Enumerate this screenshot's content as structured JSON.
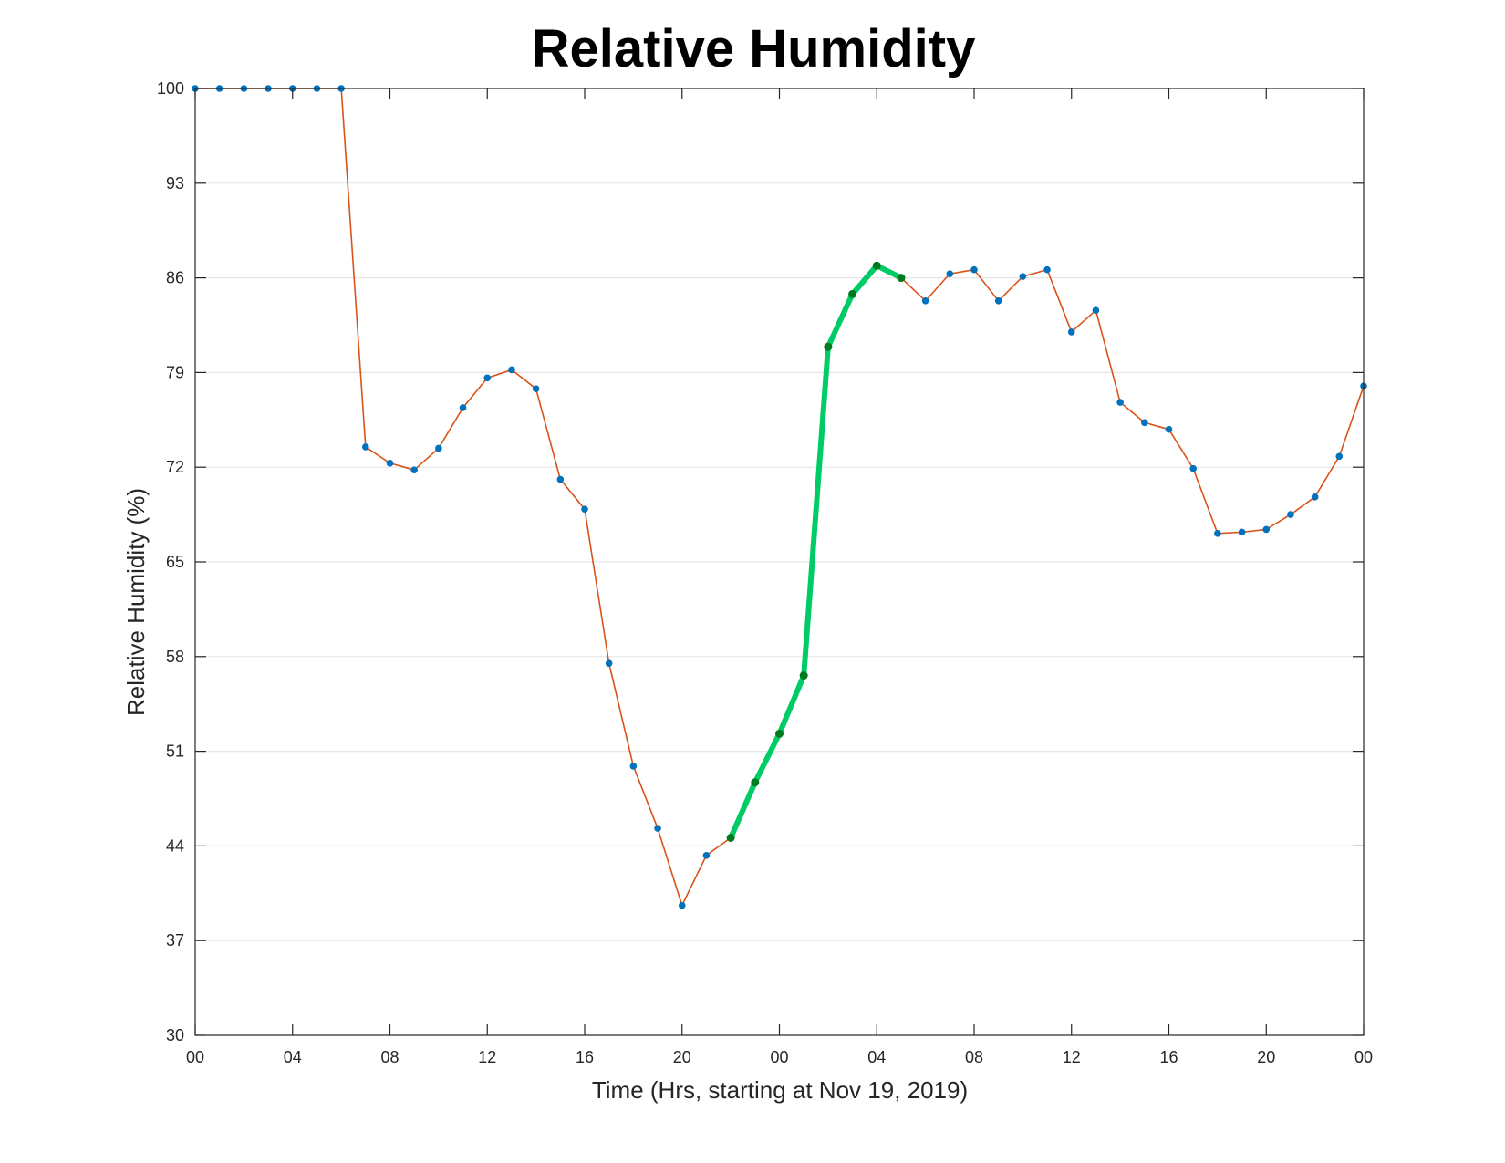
{
  "chart_data": {
    "type": "line",
    "title": "Relative Humidity",
    "xlabel": "Time (Hrs, starting at Nov 19, 2019)",
    "ylabel": "Relative Humidity (%)",
    "xlim": [
      0,
      48
    ],
    "ylim": [
      30,
      100
    ],
    "xticks": [
      0,
      4,
      8,
      12,
      16,
      20,
      24,
      28,
      32,
      36,
      40,
      44,
      48
    ],
    "xtick_labels": [
      "00",
      "04",
      "08",
      "12",
      "16",
      "20",
      "00",
      "04",
      "08",
      "12",
      "16",
      "20",
      "00"
    ],
    "yticks": [
      30,
      37,
      44,
      51,
      58,
      65,
      72,
      79,
      86,
      93,
      100
    ],
    "ytick_labels": [
      "30",
      "37",
      "44",
      "51",
      "58",
      "65",
      "72",
      "79",
      "86",
      "93",
      "100"
    ],
    "grid": "horizontal",
    "legend": "none",
    "series": [
      {
        "line_color": "#D95319",
        "marker_color": "#0072BD",
        "x": [
          0,
          1,
          2,
          3,
          4,
          5,
          6,
          7,
          8,
          9,
          10,
          11,
          12,
          13,
          14,
          15,
          16,
          17,
          18,
          19,
          20,
          21,
          22,
          23,
          24,
          25,
          26,
          27,
          28,
          29,
          30,
          31,
          32,
          33,
          34,
          35,
          36,
          37,
          38,
          39,
          40,
          41,
          42,
          43,
          44,
          45,
          46,
          47,
          48
        ],
        "y": [
          100,
          100,
          100,
          100,
          100,
          100,
          100,
          73.5,
          72.3,
          71.8,
          73.4,
          76.4,
          78.6,
          79.2,
          77.8,
          71.1,
          68.9,
          57.5,
          49.9,
          45.3,
          39.6,
          43.3,
          44.6,
          48.7,
          52.3,
          56.6,
          80.9,
          84.8,
          86.9,
          86.0,
          84.3,
          86.3,
          86.6,
          84.3,
          86.1,
          86.6,
          82.0,
          83.6,
          76.8,
          75.3,
          74.8,
          71.9,
          67.1,
          67.2,
          67.4,
          68.5,
          69.8,
          72.8,
          78.0
        ]
      },
      {
        "line_color": "#00CC66",
        "marker_color": "#007A1F",
        "highlighted": true,
        "x": [
          22,
          23,
          24,
          25,
          26,
          27,
          28,
          29
        ],
        "y": [
          44.6,
          48.7,
          52.3,
          56.6,
          80.9,
          84.8,
          86.9,
          86.0
        ]
      }
    ]
  }
}
